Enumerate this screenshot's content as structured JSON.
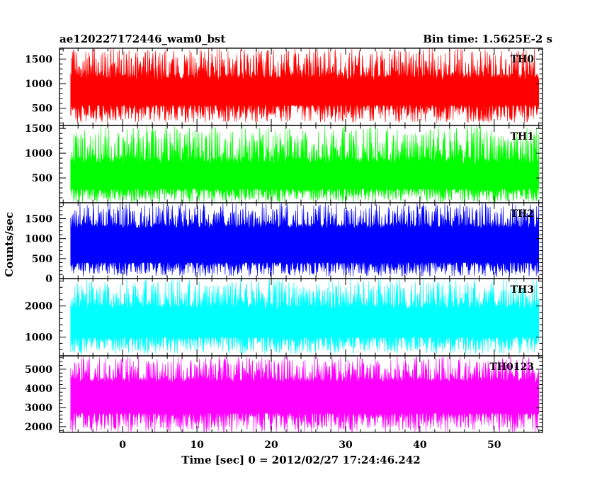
{
  "chart_data": {
    "type": "line",
    "title_left": "ae120227172446_wam0_bst",
    "title_right": "Bin time: 1.5625E-2 s",
    "xlabel": "Time [sec] 0 = 2012/02/27 17:24:46.242",
    "ylabel": "Counts/sec",
    "xlim": [
      -8.5,
      56.5
    ],
    "x_ticks": [
      0,
      10,
      20,
      30,
      40,
      50
    ],
    "data_x_range": [
      -7.0,
      56.0
    ],
    "panels": [
      {
        "name": "TH0",
        "color": "#ff0000",
        "ylim": [
          150,
          1720
        ],
        "y_ticks": [
          500,
          1000,
          1500
        ],
        "envelope": {
          "upper_min": 1080,
          "upper_max": 1720,
          "lower_min": 200,
          "lower_max": 560,
          "core_low": 560,
          "core_high": 1080
        }
      },
      {
        "name": "TH1",
        "color": "#00ff00",
        "ylim": [
          0,
          1560
        ],
        "y_ticks": [
          500,
          1000,
          1500
        ],
        "envelope": {
          "upper_min": 780,
          "upper_max": 1560,
          "lower_min": 0,
          "lower_max": 280,
          "core_low": 280,
          "core_high": 780
        }
      },
      {
        "name": "TH2",
        "color": "#0000ff",
        "ylim": [
          0,
          1900
        ],
        "y_ticks": [
          0,
          500,
          1000,
          1500
        ],
        "envelope": {
          "upper_min": 1250,
          "upper_max": 1900,
          "lower_min": 50,
          "lower_max": 400,
          "core_low": 400,
          "core_high": 1250
        }
      },
      {
        "name": "TH3",
        "color": "#00ffff",
        "ylim": [
          400,
          2880
        ],
        "y_ticks": [
          1000,
          2000
        ],
        "envelope": {
          "upper_min": 1900,
          "upper_max": 2880,
          "lower_min": 450,
          "lower_max": 1000,
          "core_low": 1000,
          "core_high": 1900
        }
      },
      {
        "name": "TH0123",
        "color": "#ff00ff",
        "ylim": [
          1700,
          5700
        ],
        "y_ticks": [
          2000,
          3000,
          4000,
          5000
        ],
        "envelope": {
          "upper_min": 4300,
          "upper_max": 5700,
          "lower_min": 1700,
          "lower_max": 2700,
          "core_low": 2700,
          "core_high": 4300
        }
      }
    ]
  }
}
